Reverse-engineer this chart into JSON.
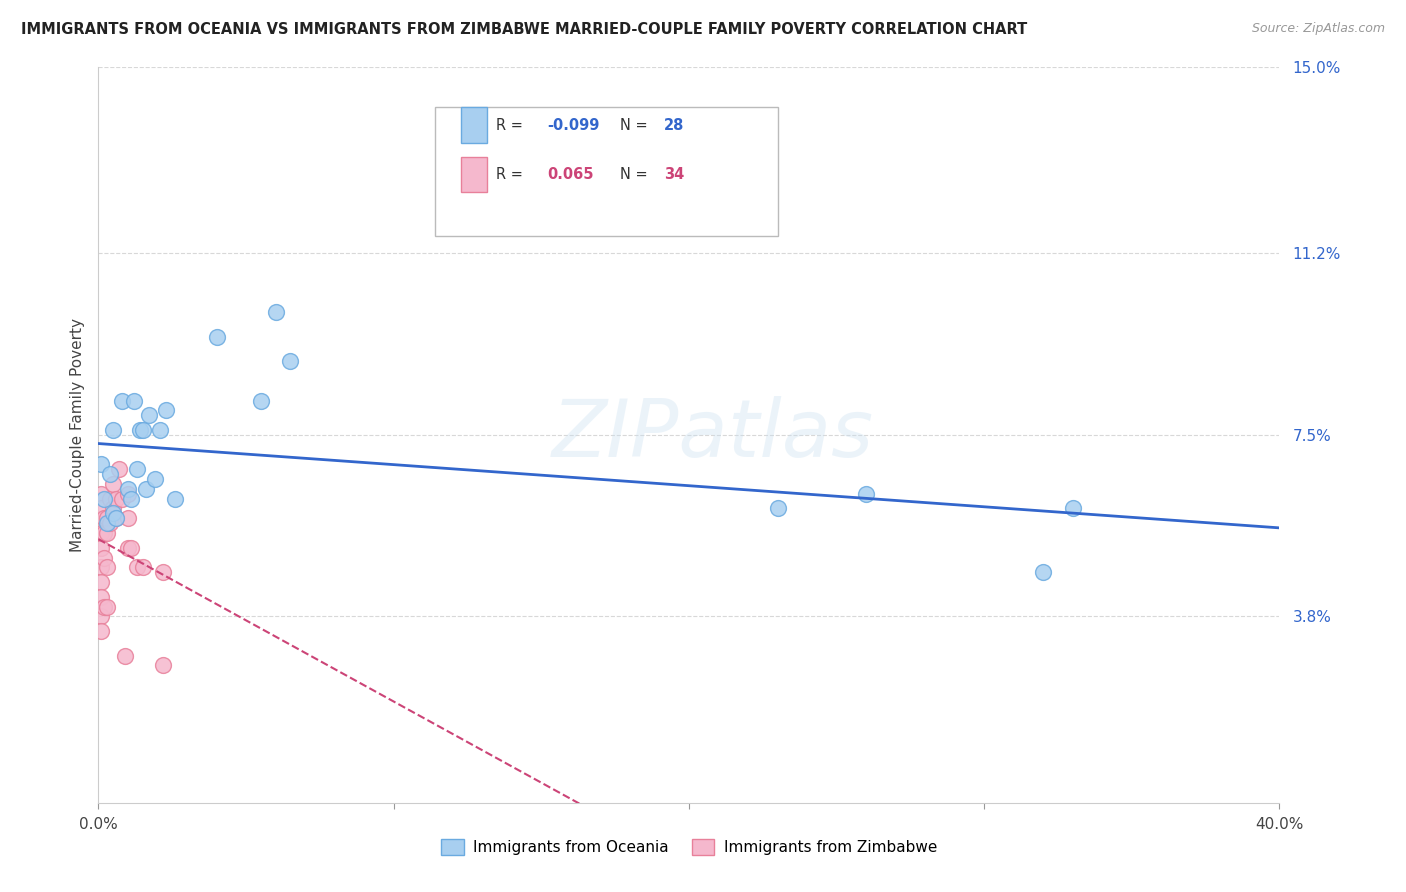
{
  "title": "IMMIGRANTS FROM OCEANIA VS IMMIGRANTS FROM ZIMBABWE MARRIED-COUPLE FAMILY POVERTY CORRELATION CHART",
  "source": "Source: ZipAtlas.com",
  "ylabel": "Married-Couple Family Poverty",
  "xlim": [
    0.0,
    0.4
  ],
  "ylim": [
    0.0,
    0.15
  ],
  "xticks": [
    0.0,
    0.1,
    0.2,
    0.3,
    0.4
  ],
  "xticklabels": [
    "0.0%",
    "",
    "",
    "",
    "40.0%"
  ],
  "ytick_positions": [
    0.038,
    0.075,
    0.112,
    0.15
  ],
  "ytick_labels": [
    "3.8%",
    "7.5%",
    "11.2%",
    "15.0%"
  ],
  "grid_color": "#d8d8d8",
  "background_color": "#ffffff",
  "watermark_text": "ZIPatlas",
  "oceania_color": "#a8cff0",
  "oceania_border": "#6aaae0",
  "zimbabwe_color": "#f5b8cd",
  "zimbabwe_border": "#e8809a",
  "trend_oceania_color": "#3366cc",
  "trend_zimbabwe_color": "#cc4477",
  "R_oceania": -0.099,
  "N_oceania": 28,
  "R_zimbabwe": 0.065,
  "N_zimbabwe": 34,
  "oceania_x": [
    0.001,
    0.002,
    0.003,
    0.004,
    0.005,
    0.005,
    0.006,
    0.008,
    0.01,
    0.011,
    0.012,
    0.013,
    0.014,
    0.015,
    0.016,
    0.017,
    0.019,
    0.021,
    0.023,
    0.026,
    0.04,
    0.055,
    0.06,
    0.065,
    0.23,
    0.26,
    0.32,
    0.33
  ],
  "oceania_y": [
    0.069,
    0.062,
    0.057,
    0.067,
    0.059,
    0.076,
    0.058,
    0.082,
    0.064,
    0.062,
    0.082,
    0.068,
    0.076,
    0.076,
    0.064,
    0.079,
    0.066,
    0.076,
    0.08,
    0.062,
    0.095,
    0.082,
    0.1,
    0.09,
    0.06,
    0.063,
    0.047,
    0.06
  ],
  "zimbabwe_x": [
    0.001,
    0.001,
    0.001,
    0.001,
    0.001,
    0.001,
    0.001,
    0.001,
    0.001,
    0.002,
    0.002,
    0.002,
    0.002,
    0.003,
    0.003,
    0.003,
    0.003,
    0.004,
    0.004,
    0.005,
    0.005,
    0.006,
    0.006,
    0.007,
    0.008,
    0.009,
    0.01,
    0.01,
    0.01,
    0.011,
    0.013,
    0.015,
    0.022,
    0.022
  ],
  "zimbabwe_y": [
    0.063,
    0.06,
    0.055,
    0.052,
    0.048,
    0.045,
    0.042,
    0.038,
    0.035,
    0.058,
    0.055,
    0.05,
    0.04,
    0.058,
    0.055,
    0.048,
    0.04,
    0.062,
    0.057,
    0.065,
    0.06,
    0.062,
    0.058,
    0.068,
    0.062,
    0.03,
    0.063,
    0.058,
    0.052,
    0.052,
    0.048,
    0.048,
    0.047,
    0.028
  ]
}
